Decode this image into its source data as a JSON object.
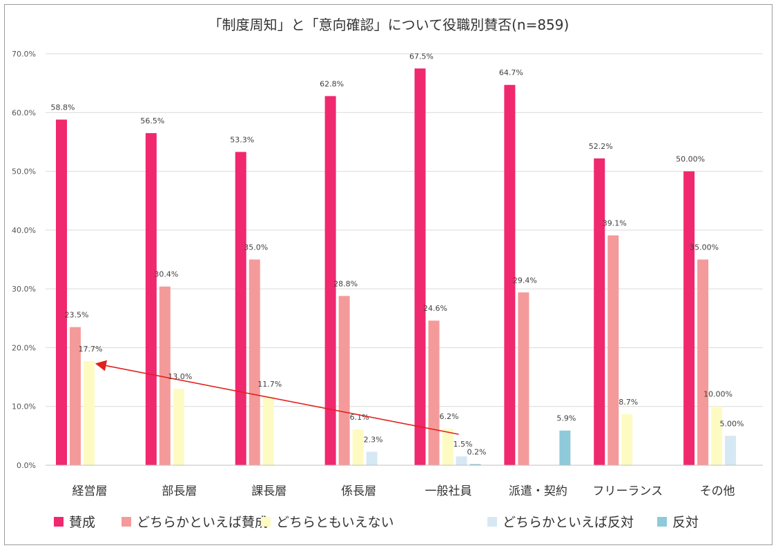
{
  "chart_data": {
    "type": "bar",
    "title": "「制度周知」と「意向確認」について役職別賛否(n=859)",
    "xlabel": "",
    "ylabel": "",
    "ylim": [
      0,
      70
    ],
    "yticks": [
      "0.0%",
      "10.0%",
      "20.0%",
      "30.0%",
      "40.0%",
      "50.0%",
      "60.0%",
      "70.0%"
    ],
    "ytick_values": [
      0,
      10,
      20,
      30,
      40,
      50,
      60,
      70
    ],
    "grid": true,
    "legend_position": "bottom",
    "categories": [
      "経営層",
      "部長層",
      "課長層",
      "係長層",
      "一般社員",
      "派遣・契約",
      "フリーランス",
      "その他"
    ],
    "series": [
      {
        "name": "賛成",
        "color": "#f0286e",
        "values": [
          58.8,
          56.5,
          53.3,
          62.8,
          67.5,
          64.7,
          52.2,
          50.0
        ],
        "labels": [
          "58.8%",
          "56.5%",
          "53.3%",
          "62.8%",
          "67.5%",
          "64.7%",
          "52.2%",
          "50.00%"
        ]
      },
      {
        "name": "どちらかといえば賛成",
        "color": "#f59a9a",
        "values": [
          23.5,
          30.4,
          35.0,
          28.8,
          24.6,
          29.4,
          39.1,
          35.0
        ],
        "labels": [
          "23.5%",
          "30.4%",
          "35.0%",
          "28.8%",
          "24.6%",
          "29.4%",
          "39.1%",
          "35.00%"
        ]
      },
      {
        "name": "どちらともいえない",
        "color": "#fdfbc2",
        "values": [
          17.7,
          13.0,
          11.7,
          6.1,
          6.2,
          null,
          8.7,
          10.0
        ],
        "labels": [
          "17.7%",
          "13.0%",
          "11.7%",
          "6.1%",
          "6.2%",
          "",
          "8.7%",
          "10.00%"
        ]
      },
      {
        "name": "どちらかといえば反対",
        "color": "#d6e8f3",
        "values": [
          null,
          null,
          null,
          2.3,
          1.5,
          null,
          null,
          5.0
        ],
        "labels": [
          "",
          "",
          "",
          "2.3%",
          "1.5%",
          "",
          "",
          "5.00%"
        ]
      },
      {
        "name": "反対",
        "color": "#8ecad9",
        "values": [
          null,
          null,
          null,
          null,
          0.2,
          5.9,
          null,
          null
        ],
        "labels": [
          "",
          "",
          "",
          "",
          "0.2%",
          "5.9%",
          "",
          ""
        ]
      }
    ],
    "annotations": [
      {
        "type": "arrow",
        "color": "#e0201c",
        "from": [
          "一般社員",
          6.2
        ],
        "to": [
          "経営層",
          17.7
        ]
      }
    ]
  }
}
